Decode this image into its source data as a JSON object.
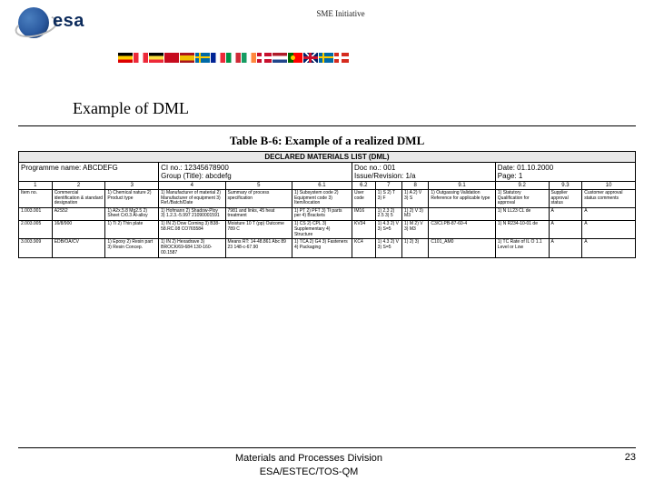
{
  "header": {
    "logo_text": "esa",
    "subtitle": "SME Initiative"
  },
  "flags": [
    {
      "bg": "linear-gradient(to bottom,#000 33%,#ffce00 33% 66%,#dd0000 66%)"
    },
    {
      "bg": "linear-gradient(to right,#ed2939 33%,#fff 33% 66%,#ed2939 66%)"
    },
    {
      "bg": "linear-gradient(to bottom,#000 33%,#fae042 33% 66%,#ed2939 66%)"
    },
    {
      "bg": "#c60b1e",
      "extra": "stripe-red-yellow"
    },
    {
      "bg": "linear-gradient(to bottom,#aa151b 25%,#f1bf00 25% 75%,#aa151b 75%)"
    },
    {
      "bg": "#006aa7",
      "extra": "cross-yellow"
    },
    {
      "bg": "linear-gradient(to right,#002395 33%,#fff 33% 66%,#ed2939 66%)"
    },
    {
      "bg": "linear-gradient(to right,#009246 33%,#fff 33% 66%,#ce2b37 66%)"
    },
    {
      "bg": "linear-gradient(to right,#169b62 33%,#fff 33% 66%,#ff883e 66%)"
    },
    {
      "bg": "#c8102e",
      "extra": "cross-white"
    },
    {
      "bg": "linear-gradient(to bottom,#ae1c28 33%,#fff 33% 66%,#21468b 66%)"
    },
    {
      "bg": "#006600",
      "extra": "pt"
    },
    {
      "bg": "#012169",
      "extra": "uk"
    },
    {
      "bg": "#006aa7",
      "extra": "cross-yellow"
    },
    {
      "bg": "#d52b1e",
      "extra": "cross-white"
    }
  ],
  "title": "Example of DML",
  "table_title": "Table B-6: Example of a realized DML",
  "dml_header": "DECLARED MATERIALS LIST (DML)",
  "meta": {
    "programme": "Programme name: ABCDEFG",
    "ci": "CI no.: 12345678900",
    "group": "Group (Title): abcdefg",
    "doc": "Doc no.: 001",
    "issue": "Issue/Revision: 1/a",
    "date": "Date: 01.10.2000",
    "page": "Page: 1"
  },
  "colnums": [
    "1",
    "2",
    "3",
    "4",
    "5",
    "6.1",
    "6.2",
    "7",
    "8",
    "9.1",
    "9.2",
    "9.3",
    "10"
  ],
  "colheads": [
    "Item no.",
    "Commercial identification & standard designation",
    "1) Chemical nature 2) Product type",
    "1) Manufacturer of material 2) Manufacturer of equipment 3) Ref./Batch/Date",
    "Summary of process specification",
    "1) Subsystem code 2) Equipment code 3) Item/location",
    "User code",
    "1) S 2) T 3) F",
    "1) A 2) V 3) S",
    "1) Outgassing Validation Reference for applicable type",
    "1) Statutory Qualification for approval",
    "Supplier approval status",
    "Customer approval status comments"
  ],
  "rows": [
    [
      "1.003.001",
      "A2S52",
      "1) A2x.5.8 Mg2.5 2) Sheet Cr0.3 Al-alloy",
      "1) Hofmann 2) Shadow-Ploy 3) 1.2.3.-5.997\n21090001591",
      "7981 and links, 45 heat treatment",
      "1) PT 2) PFT 3) Tł parts per 4) Brackets",
      "IM16",
      "1) 2.3 2) 2.5 3) 5",
      "1) 2) V 3) M3",
      "",
      "1) N LL23 CL de",
      "A",
      "A"
    ],
    [
      "2.003.005",
      "16/8/900",
      "1) Ti 2) Thin plate",
      "1) IN 2) Dow Corning 3) B38-58.RC.08 CO765584",
      "Moisture 10 T (pp) Outcome 789 C",
      "1) CS 2) CPL 3) Supplementary 4) Structure",
      "KV34",
      "1) 4.3 2) V 3) S=5",
      "1) M 2) V 3) M3",
      "C3/CI.PB-87-60-4",
      "1) N R234-10-01 de",
      "A",
      "A"
    ],
    [
      "3.003.909",
      "EDB/OA/CV",
      "1) Epoxy 2) Resin part 3) Resin Concep.",
      "1) IN 2) Hexadrave 3) BROCK/69-684 130-160-00.1587",
      "Means RT: 14-48.861 Abc 89 23 148-c-67.90",
      "1) TCA 2) G4 3) Fasteners 4) Packaging",
      "KC4",
      "1) 4.3 2) V 3) S=5",
      "1) 2) 3)",
      "C101_AM0",
      "1) TC Rate of IL O 1.1 Level or Low",
      "A",
      "A"
    ]
  ],
  "footer": {
    "text1": "Materials and Processes Division",
    "text2": "ESA/ESTEC/TOS-QM",
    "page": "23"
  },
  "colors": {
    "rule": "#000000",
    "header_bg": "#e8e8e8"
  }
}
